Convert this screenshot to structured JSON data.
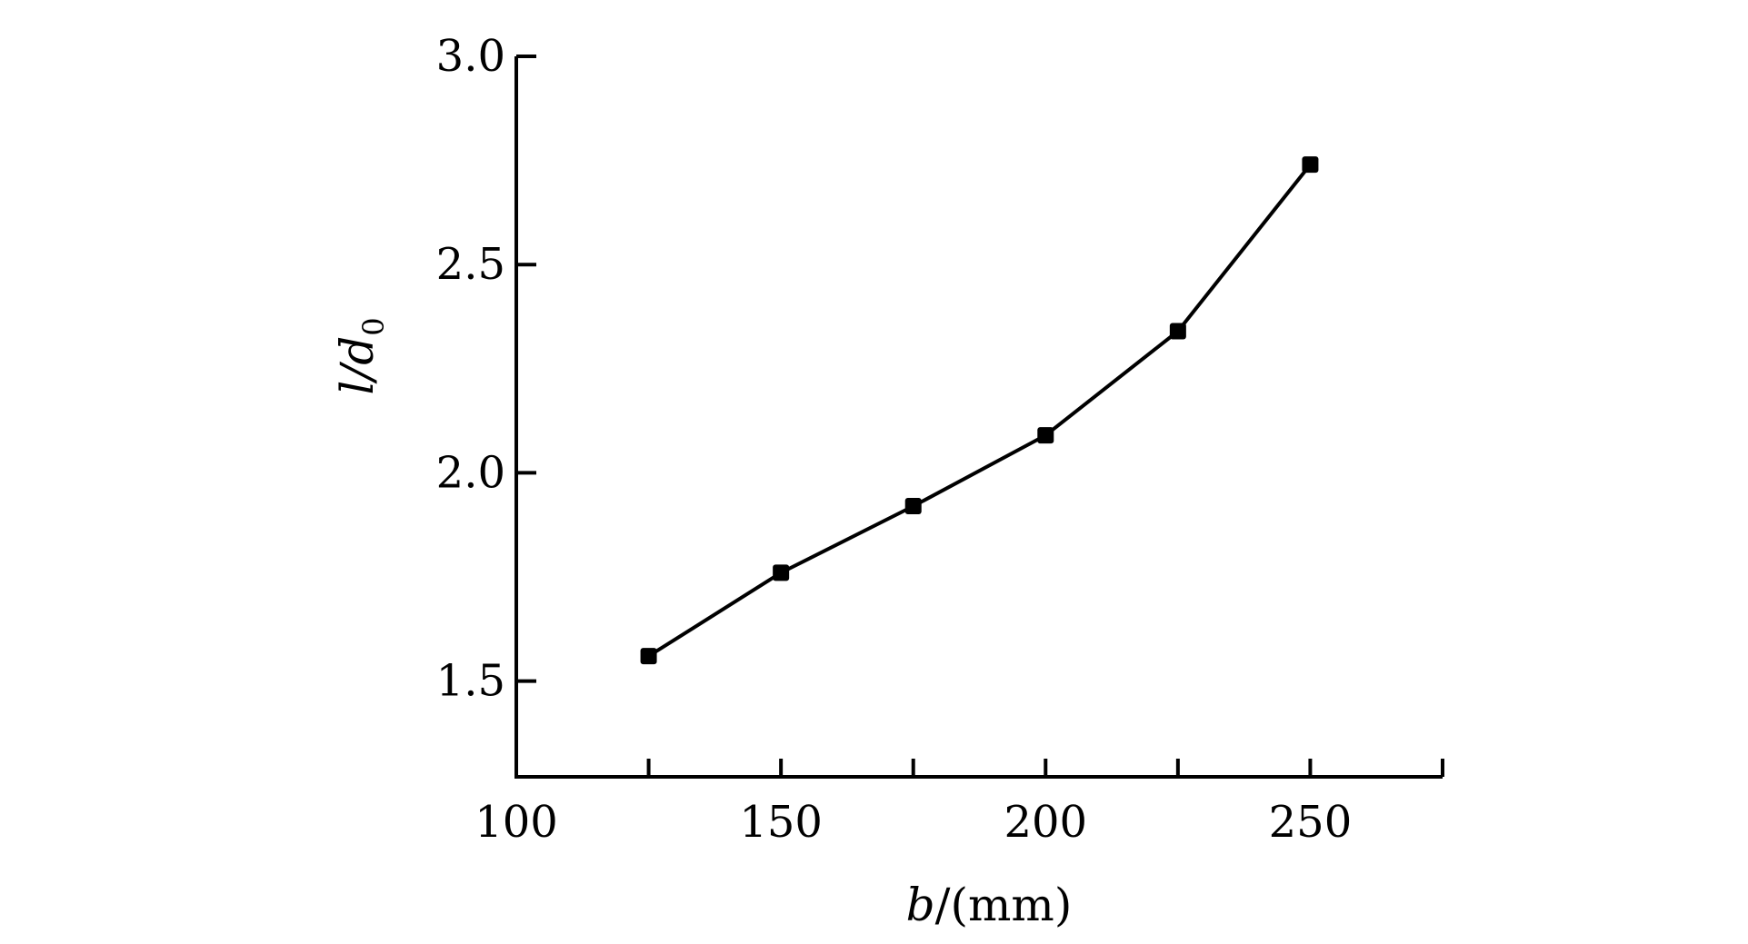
{
  "chart_data": {
    "type": "line",
    "title": "",
    "xlabel": {
      "var": "b",
      "unit": "/(mm)"
    },
    "ylabel": {
      "var": "l/d",
      "subscript": "0"
    },
    "xlim": [
      100,
      275
    ],
    "ylim": [
      1.27,
      3.0
    ],
    "xticks": [
      "100",
      "150",
      "200",
      "250"
    ],
    "yticks": [
      "1.5",
      "2.0",
      "2.5",
      "3.0"
    ],
    "x_minor_ticks": [
      125,
      175,
      225,
      275
    ],
    "grid": false,
    "legend": "none",
    "colors": {
      "line": "#000000",
      "marker": "#000000",
      "axis": "#000000"
    },
    "series": [
      {
        "x": [
          125,
          150,
          175,
          200,
          225,
          250
        ],
        "y": [
          1.56,
          1.76,
          1.92,
          2.09,
          2.34,
          2.74
        ]
      }
    ]
  }
}
